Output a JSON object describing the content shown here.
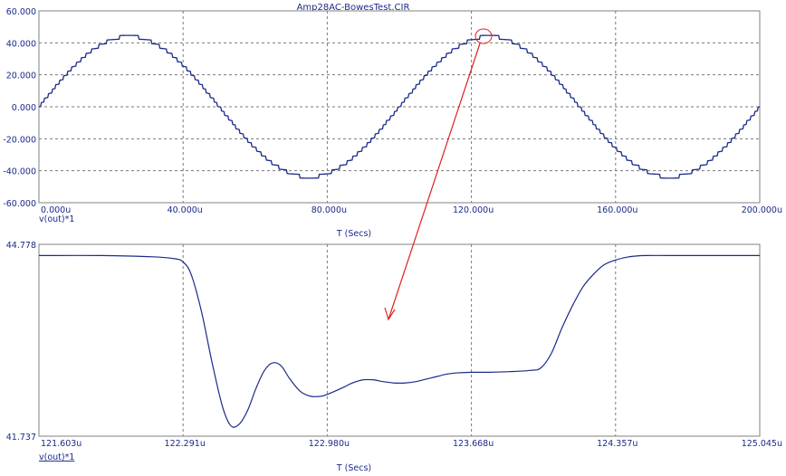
{
  "title": "Amp28AC-BowesTest.CIR",
  "colors": {
    "trace": "#1a2a8a",
    "text": "#1a2a8a",
    "grid": "#7a7a7a",
    "annotation": "#e02020"
  },
  "chart_data": [
    {
      "type": "line",
      "x_tick_labels": [
        "0.000u",
        "40.000u",
        "80.000u",
        "120.000u",
        "160.000u",
        "200.000u"
      ],
      "y_tick_labels": [
        "60.000",
        "40.000",
        "20.000",
        "0.000",
        "-20.000",
        "-40.000",
        "-60.000"
      ],
      "xlim": [
        0,
        200
      ],
      "ylim": [
        -60,
        60
      ],
      "xlabel": "T (Secs)",
      "series_label": "v(out)*1",
      "grid": true,
      "series": [
        {
          "description": "stepped sine, amplitude ~44, period ~100u, step ~2.8",
          "amplitude": 44,
          "period": 100,
          "step": 2.8
        }
      ]
    },
    {
      "type": "line",
      "x_tick_labels": [
        "121.603u",
        "122.291u",
        "122.980u",
        "123.668u",
        "124.357u",
        "125.045u"
      ],
      "y_tick_labels": [
        "44.778",
        "41.737"
      ],
      "xlim": [
        121.603,
        125.045
      ],
      "ylim": [
        41.737,
        44.778
      ],
      "xlabel": "T (Secs)",
      "series_label": "v(out)*1",
      "grid": true,
      "series": [
        {
          "x": [
            121.603,
            121.9,
            122.15,
            122.25,
            122.291,
            122.33,
            122.38,
            122.43,
            122.48,
            122.52,
            122.56,
            122.6,
            122.64,
            122.68,
            122.72,
            122.76,
            122.8,
            122.85,
            122.9,
            122.95,
            122.98,
            123.05,
            123.1,
            123.15,
            123.2,
            123.25,
            123.3,
            123.35,
            123.4,
            123.45,
            123.5,
            123.55,
            123.6,
            123.668,
            123.75,
            123.85,
            123.95,
            124.0,
            124.05,
            124.1,
            124.15,
            124.2,
            124.25,
            124.3,
            124.357,
            124.42,
            124.5,
            124.7,
            125.045
          ],
          "y": [
            44.6,
            44.6,
            44.58,
            44.55,
            44.5,
            44.3,
            43.7,
            42.9,
            42.2,
            41.9,
            41.93,
            42.15,
            42.5,
            42.78,
            42.9,
            42.85,
            42.65,
            42.45,
            42.37,
            42.37,
            42.4,
            42.5,
            42.58,
            42.63,
            42.63,
            42.6,
            42.58,
            42.58,
            42.6,
            42.64,
            42.68,
            42.72,
            42.74,
            42.75,
            42.75,
            42.76,
            42.78,
            42.82,
            43.05,
            43.45,
            43.8,
            44.1,
            44.3,
            44.45,
            44.53,
            44.58,
            44.6,
            44.6,
            44.6
          ]
        }
      ]
    }
  ]
}
